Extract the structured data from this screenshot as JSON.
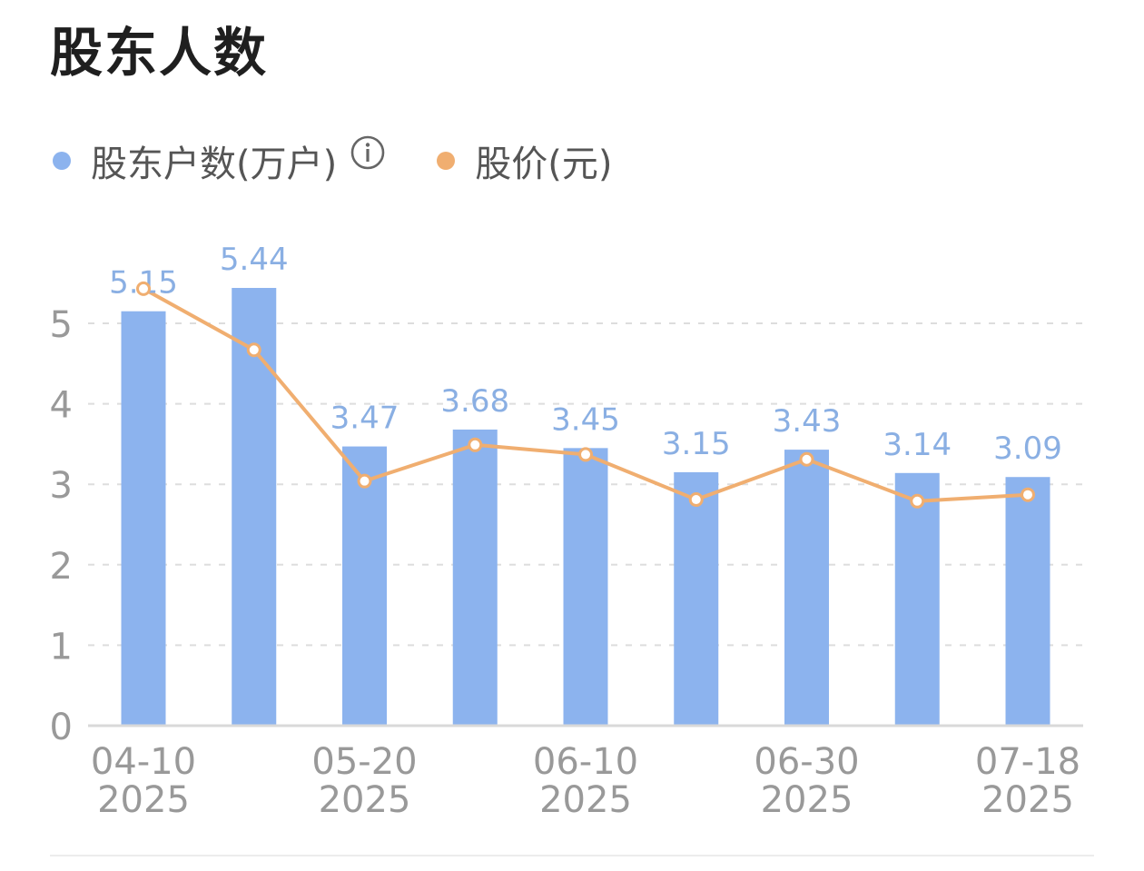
{
  "title": "股东人数",
  "legend": {
    "holders_label": "股东户数(万户)",
    "price_label": "股价(元)"
  },
  "colors": {
    "bar": "#8cb3ee",
    "bar_label": "#8aafe3",
    "line": "#f0ae70",
    "axis_text": "#999999",
    "grid": "#dddddd"
  },
  "chart_data": {
    "type": "bar",
    "categories": [
      "2025-04-10",
      "",
      "2025-05-20",
      "",
      "2025-06-10",
      "",
      "2025-06-30",
      "",
      "2025-07-18"
    ],
    "x_tick_labels": [
      {
        "index": 0,
        "line1": "04-10",
        "line2": "2025"
      },
      {
        "index": 2,
        "line1": "05-20",
        "line2": "2025"
      },
      {
        "index": 4,
        "line1": "06-10",
        "line2": "2025"
      },
      {
        "index": 6,
        "line1": "06-30",
        "line2": "2025"
      },
      {
        "index": 8,
        "line1": "07-18",
        "line2": "2025"
      }
    ],
    "series": [
      {
        "name": "股东户数(万户)",
        "type": "bar",
        "values": [
          5.15,
          5.44,
          3.47,
          3.68,
          3.45,
          3.15,
          3.43,
          3.14,
          3.09
        ]
      },
      {
        "name": "股价(元)",
        "type": "line",
        "values": [
          5.43,
          4.67,
          3.04,
          3.49,
          3.37,
          2.81,
          3.31,
          2.79,
          2.87
        ]
      }
    ],
    "ylim": [
      0,
      5.5
    ],
    "y_ticks": [
      0,
      1,
      2,
      3,
      4,
      5
    ],
    "grid": true,
    "legend_position": "top-left"
  }
}
